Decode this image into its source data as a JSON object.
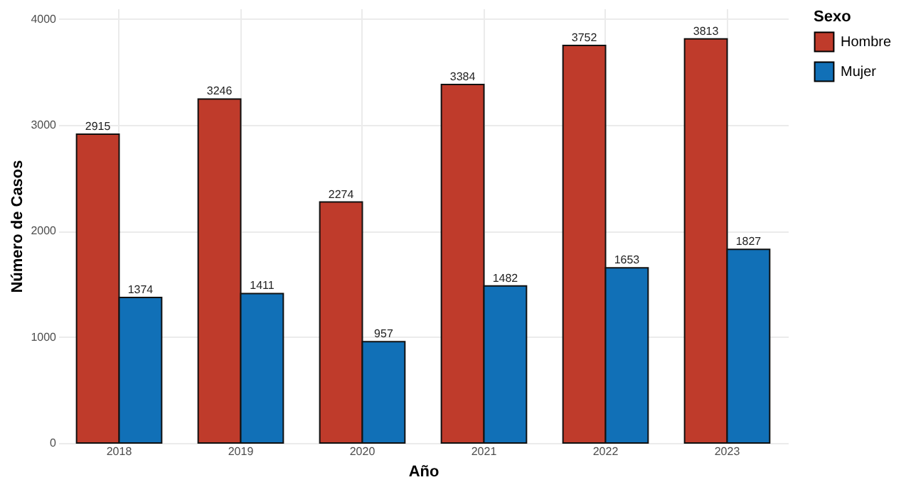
{
  "chart_data": {
    "type": "bar",
    "xlabel": "Año",
    "ylabel": "Número de Casos",
    "legend_title": "Sexo",
    "categories": [
      "2018",
      "2019",
      "2020",
      "2021",
      "2022",
      "2023"
    ],
    "series": [
      {
        "name": "Hombre",
        "color": "#bf3b2b",
        "values": [
          2915,
          3246,
          2274,
          3384,
          3752,
          3813
        ]
      },
      {
        "name": "Mujer",
        "color": "#1170b7",
        "values": [
          1374,
          1411,
          957,
          1482,
          1653,
          1827
        ]
      }
    ],
    "ylim": [
      0,
      4100
    ],
    "yticks": [
      0,
      1000,
      2000,
      3000,
      4000
    ],
    "grid": true,
    "legend": "right",
    "data_labels": true
  }
}
